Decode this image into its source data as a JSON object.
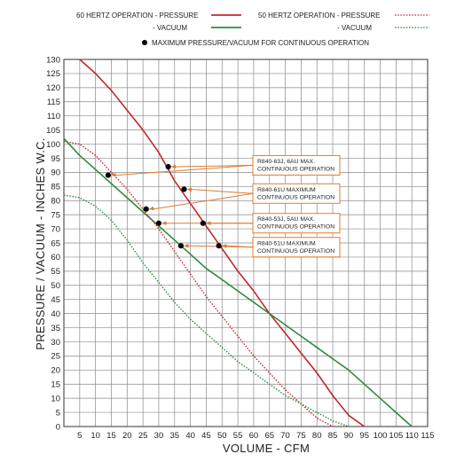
{
  "chart_data": {
    "type": "line",
    "xlabel": "VOLUME - CFM",
    "ylabel": "PRESSURE / VACUUM -  INCHES W.C.",
    "xlim": [
      0,
      115
    ],
    "ylim": [
      0,
      130
    ],
    "x_ticks": [
      "5",
      "10",
      "15",
      "20",
      "25",
      "30",
      "35",
      "40",
      "45",
      "50",
      "55",
      "60",
      "65",
      "70",
      "75",
      "80",
      "85",
      "90",
      "95",
      "100",
      "105",
      "110",
      "115"
    ],
    "x_tick_values": [
      5,
      10,
      15,
      20,
      25,
      30,
      35,
      40,
      45,
      50,
      55,
      60,
      65,
      70,
      75,
      80,
      85,
      90,
      95,
      100,
      105,
      110,
      115
    ],
    "y_ticks": [
      "0",
      "5",
      "10",
      "15",
      "20",
      "25",
      "30",
      "35",
      "40",
      "45",
      "50",
      "55",
      "60",
      "65",
      "70",
      "75",
      "80",
      "85",
      "90",
      "95",
      "100",
      "105",
      "110",
      "115",
      "120",
      "125",
      "130"
    ],
    "y_tick_values": [
      0,
      5,
      10,
      15,
      20,
      25,
      30,
      35,
      40,
      45,
      50,
      55,
      60,
      65,
      70,
      75,
      80,
      85,
      90,
      95,
      100,
      105,
      110,
      115,
      120,
      125,
      130
    ],
    "grid": true,
    "legend": [
      {
        "label": "60 HERTZ OPERATION - PRESSURE",
        "color": "#c0272d",
        "dash": "solid"
      },
      {
        "label": "- VACUUM",
        "color": "#2e8b3e",
        "dash": "solid"
      },
      {
        "label": "50 HERTZ OPERATION - PRESSURE",
        "color": "#c0272d",
        "dash": "dotted"
      },
      {
        "label": "- VACUUM",
        "color": "#2e8b3e",
        "dash": "dotted"
      },
      {
        "label": "MAXIMUM PRESSURE/VACUUM FOR CONTINUOUS OPERATION",
        "marker": "dot"
      }
    ],
    "series": [
      {
        "id": "p60",
        "color": "#c0272d",
        "dash": "solid",
        "x": [
          5,
          10,
          15,
          20,
          25,
          30,
          35,
          40,
          45,
          50,
          55,
          60,
          65,
          70,
          75,
          80,
          85,
          90,
          95
        ],
        "y": [
          130,
          125,
          119,
          112,
          105,
          97,
          87,
          79,
          71,
          63,
          55,
          48,
          40,
          33,
          26,
          19,
          11,
          4,
          0
        ]
      },
      {
        "id": "v60",
        "color": "#2e8b3e",
        "dash": "solid",
        "x": [
          0,
          5,
          10,
          15,
          20,
          25,
          30,
          35,
          40,
          45,
          50,
          55,
          60,
          65,
          70,
          75,
          80,
          85,
          90,
          95,
          100,
          105,
          110
        ],
        "y": [
          102,
          96,
          91,
          86,
          81,
          76,
          71,
          66,
          61,
          56,
          52,
          48,
          44,
          40,
          36,
          32,
          28,
          24,
          20,
          15,
          10,
          5,
          0
        ]
      },
      {
        "id": "p50",
        "color": "#c0272d",
        "dash": "dotted",
        "x": [
          0,
          5,
          10,
          15,
          20,
          25,
          30,
          35,
          40,
          45,
          50,
          55,
          60,
          65,
          70,
          75,
          80,
          85
        ],
        "y": [
          101,
          100,
          96,
          90,
          84,
          77,
          70,
          62,
          54,
          46,
          39,
          32,
          25,
          19,
          13,
          8,
          3,
          0
        ]
      },
      {
        "id": "v50",
        "color": "#2e8b3e",
        "dash": "dotted",
        "x": [
          0,
          5,
          10,
          15,
          20,
          25,
          30,
          35,
          40,
          45,
          50,
          55,
          60,
          65,
          70,
          75,
          80,
          85,
          90
        ],
        "y": [
          82,
          81,
          78,
          73,
          66,
          58,
          51,
          44,
          38,
          33,
          28,
          23,
          19,
          15,
          11,
          8,
          5,
          2,
          0
        ]
      }
    ],
    "points": [
      {
        "x": 33,
        "y": 92
      },
      {
        "x": 38,
        "y": 84
      },
      {
        "x": 14,
        "y": 89
      },
      {
        "x": 26,
        "y": 77
      },
      {
        "x": 30,
        "y": 72
      },
      {
        "x": 44,
        "y": 72
      },
      {
        "x": 37,
        "y": 64
      },
      {
        "x": 49,
        "y": 64
      }
    ],
    "callouts": [
      {
        "lines": [
          "R840-63J, 6AU  MAX.",
          "CONTINUOUS OPERATION"
        ],
        "anchor_y": 92.5,
        "targets": [
          {
            "x": 33,
            "y": 92
          },
          {
            "x": 14,
            "y": 89
          }
        ]
      },
      {
        "lines": [
          "R840-61U MAXIMUM",
          "CONTINUOUS OPERATION"
        ],
        "anchor_y": 82.5,
        "targets": [
          {
            "x": 38,
            "y": 84
          },
          {
            "x": 26,
            "y": 77
          }
        ]
      },
      {
        "lines": [
          "R840-53J, 5AU  MAX.",
          "CONTINUOUS OPERATION"
        ],
        "anchor_y": 72,
        "targets": [
          {
            "x": 44,
            "y": 72
          },
          {
            "x": 30,
            "y": 72
          }
        ]
      },
      {
        "lines": [
          "R840-51U MAXIMUM",
          "CONTINUOUS OPERATION"
        ],
        "anchor_y": 63.5,
        "targets": [
          {
            "x": 49,
            "y": 64
          },
          {
            "x": 37,
            "y": 64
          }
        ]
      }
    ]
  },
  "colors": {
    "grid": "#8a8a8a",
    "callout": "#e07d2e",
    "point": "#000000"
  }
}
